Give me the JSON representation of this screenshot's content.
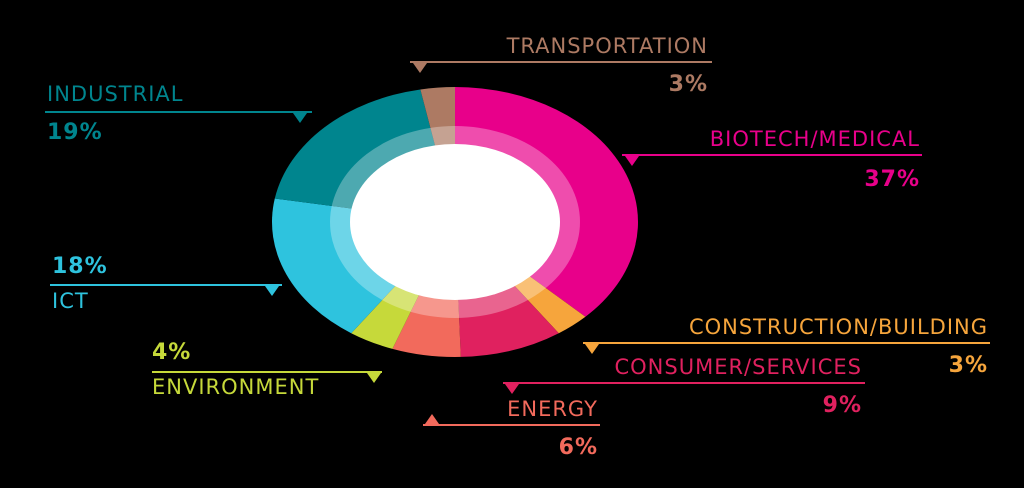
{
  "chart_data": {
    "type": "pie",
    "categories": [
      "BIOTECH/MEDICAL",
      "CONSTRUCTION/BUILDING",
      "CONSUMER/SERVICES",
      "ENERGY",
      "ENVIRONMENT",
      "ICT",
      "INDUSTRIAL",
      "TRANSPORTATION"
    ],
    "values": [
      37,
      3,
      9,
      6,
      4,
      18,
      19,
      3
    ],
    "value_labels": [
      "37%",
      "3%",
      "9%",
      "6%",
      "4%",
      "18%",
      "19%",
      "3%"
    ],
    "colors": [
      "#e8008a",
      "#f6a53c",
      "#e0215f",
      "#f26a5c",
      "#c6d93a",
      "#2ec3de",
      "#00858e",
      "#ad7a63"
    ]
  }
}
